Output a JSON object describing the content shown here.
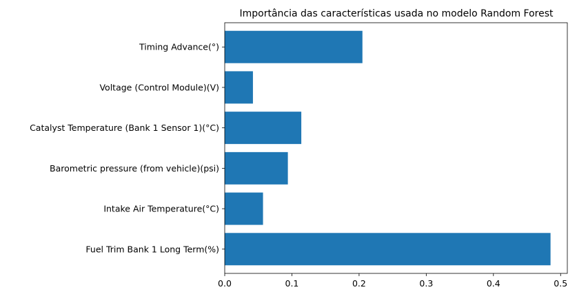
{
  "chart_data": {
    "type": "bar",
    "orientation": "horizontal",
    "title": "Importância das características usada no modelo Random Forest",
    "xlabel": "",
    "ylabel": "",
    "categories": [
      "Fuel Trim Bank 1 Long Term(%)",
      "Intake Air Temperature(°C)",
      "Barometric pressure (from vehicle)(psi)",
      "Catalyst Temperature (Bank 1 Sensor 1)(°C)",
      "Voltage (Control Module)(V)",
      "Timing Advance(°)"
    ],
    "values": [
      0.485,
      0.057,
      0.094,
      0.114,
      0.042,
      0.205
    ],
    "xlim": [
      0,
      0.51
    ],
    "xticks": [
      0.0,
      0.1,
      0.2,
      0.3,
      0.4,
      0.5
    ],
    "xtick_labels": [
      "0.0",
      "0.1",
      "0.2",
      "0.3",
      "0.4",
      "0.5"
    ],
    "bar_color": "#1f77b4",
    "grid": false,
    "legend": "none"
  }
}
